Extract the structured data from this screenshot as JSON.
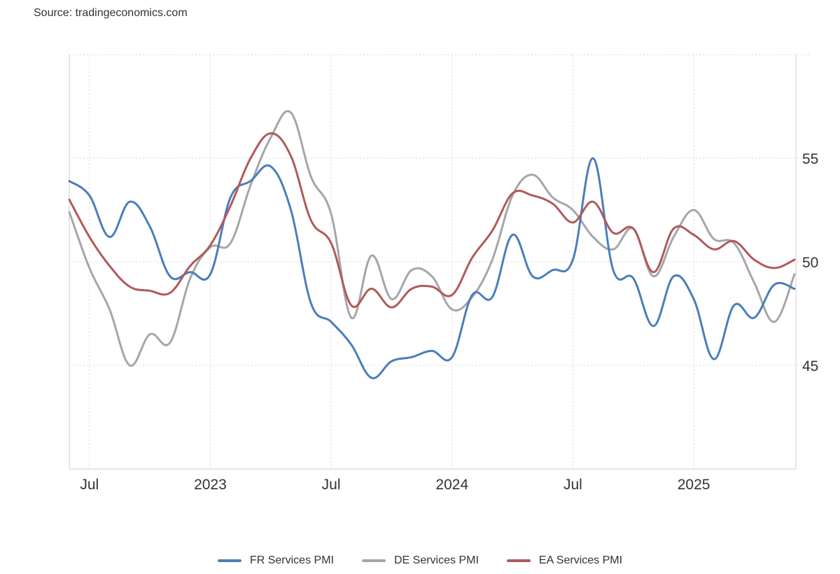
{
  "source_label": "Source: tradingeconomics.com",
  "colors": {
    "fr": "#4a7ebb",
    "de": "#a6a6a6",
    "ea": "#b05a5a",
    "grid": "#d9d9d9"
  },
  "chart_data": {
    "type": "line",
    "title": "",
    "xlabel": "",
    "ylabel": "",
    "x": [
      "2022-06",
      "2022-07",
      "2022-08",
      "2022-09",
      "2022-10",
      "2022-11",
      "2022-12",
      "2023-01",
      "2023-02",
      "2023-03",
      "2023-04",
      "2023-05",
      "2023-06",
      "2023-07",
      "2023-08",
      "2023-09",
      "2023-10",
      "2023-11",
      "2023-12",
      "2024-01",
      "2024-02",
      "2024-03",
      "2024-04",
      "2024-05",
      "2024-06",
      "2024-07",
      "2024-08",
      "2024-09",
      "2024-10",
      "2024-11",
      "2024-12",
      "2025-01",
      "2025-02",
      "2025-03",
      "2025-04",
      "2025-05",
      "2025-06"
    ],
    "series": [
      {
        "name": "FR Services PMI",
        "values": [
          53.9,
          53.2,
          51.2,
          52.9,
          51.7,
          49.3,
          49.5,
          49.4,
          53.1,
          53.9,
          54.6,
          52.5,
          48.0,
          47.1,
          46.0,
          44.4,
          45.2,
          45.4,
          45.7,
          45.4,
          48.4,
          48.3,
          51.3,
          49.3,
          49.6,
          50.1,
          55.0,
          49.6,
          49.2,
          46.9,
          49.3,
          48.2,
          45.3,
          47.9,
          47.3,
          48.9,
          48.7
        ]
      },
      {
        "name": "DE Services PMI",
        "values": [
          52.4,
          49.7,
          47.7,
          45.0,
          46.5,
          46.1,
          49.2,
          50.7,
          50.9,
          53.7,
          56.0,
          57.2,
          54.1,
          52.3,
          47.3,
          50.3,
          48.2,
          49.6,
          49.3,
          47.7,
          48.3,
          50.1,
          53.2,
          54.2,
          53.1,
          52.5,
          51.2,
          50.6,
          51.6,
          49.3,
          51.2,
          52.5,
          51.1,
          50.9,
          49.0,
          47.1,
          49.4
        ]
      },
      {
        "name": "EA Services PMI",
        "values": [
          53.0,
          51.2,
          49.8,
          48.8,
          48.6,
          48.5,
          49.8,
          50.8,
          52.7,
          55.0,
          56.2,
          55.1,
          52.0,
          50.9,
          47.9,
          48.7,
          47.8,
          48.7,
          48.8,
          48.4,
          50.2,
          51.5,
          53.3,
          53.2,
          52.8,
          51.9,
          52.9,
          51.4,
          51.6,
          49.5,
          51.6,
          51.3,
          50.6,
          51.0,
          50.1,
          49.7,
          50.1
        ]
      }
    ],
    "y_ticks": [
      "45",
      "50",
      "55"
    ],
    "x_tick_labels": [
      "Jul",
      "2023",
      "Jul",
      "2024",
      "Jul",
      "2025"
    ],
    "ylim": [
      40,
      60
    ],
    "grid": true,
    "legend_position": "bottom-center"
  }
}
